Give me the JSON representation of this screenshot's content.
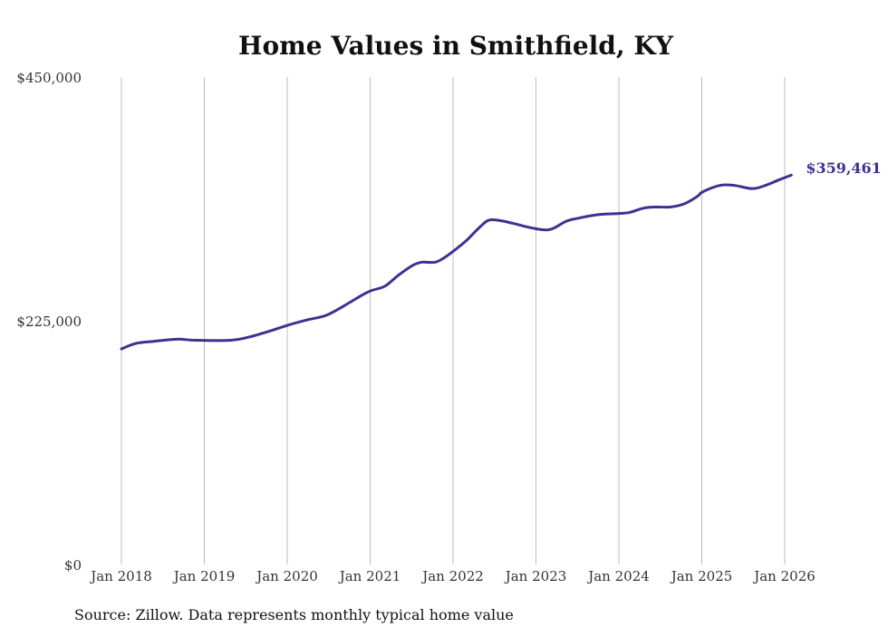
{
  "chart_data": {
    "type": "line",
    "title": "Home Values in Smithfield, KY",
    "xlabel": "",
    "ylabel": "",
    "ylim": [
      0,
      450000
    ],
    "xlim": [
      2018,
      2026.1
    ],
    "grid": "vertical",
    "y_ticks": [
      {
        "value": 0,
        "label": "$0"
      },
      {
        "value": 225000,
        "label": "$225,000"
      },
      {
        "value": 450000,
        "label": "$450,000"
      }
    ],
    "x_ticks": [
      {
        "value": 2018,
        "label": "Jan 2018"
      },
      {
        "value": 2019,
        "label": "Jan 2019"
      },
      {
        "value": 2020,
        "label": "Jan 2020"
      },
      {
        "value": 2021,
        "label": "Jan 2021"
      },
      {
        "value": 2022,
        "label": "Jan 2022"
      },
      {
        "value": 2023,
        "label": "Jan 2023"
      },
      {
        "value": 2024,
        "label": "Jan 2024"
      },
      {
        "value": 2025,
        "label": "Jan 2025"
      },
      {
        "value": 2026,
        "label": "Jan 2026"
      }
    ],
    "series": [
      {
        "name": "Typical home value",
        "color": "#3b3391",
        "end_label": "$359,461",
        "points": [
          [
            2018.0,
            199000
          ],
          [
            2018.17,
            204000
          ],
          [
            2018.39,
            206000
          ],
          [
            2018.67,
            208000
          ],
          [
            2018.89,
            207000
          ],
          [
            2019.32,
            207000
          ],
          [
            2019.54,
            210000
          ],
          [
            2019.81,
            216000
          ],
          [
            2020.01,
            221000
          ],
          [
            2020.25,
            226000
          ],
          [
            2020.47,
            230000
          ],
          [
            2020.69,
            239000
          ],
          [
            2020.91,
            249000
          ],
          [
            2021.02,
            253000
          ],
          [
            2021.18,
            257000
          ],
          [
            2021.34,
            267000
          ],
          [
            2021.51,
            276000
          ],
          [
            2021.62,
            279000
          ],
          [
            2021.78,
            279000
          ],
          [
            2021.89,
            283000
          ],
          [
            2022.0,
            289000
          ],
          [
            2022.16,
            299000
          ],
          [
            2022.33,
            312000
          ],
          [
            2022.44,
            318000
          ],
          [
            2022.6,
            317000
          ],
          [
            2022.77,
            314000
          ],
          [
            2022.93,
            311000
          ],
          [
            2023.09,
            309000
          ],
          [
            2023.2,
            310000
          ],
          [
            2023.37,
            317000
          ],
          [
            2023.53,
            320000
          ],
          [
            2023.75,
            323000
          ],
          [
            2024.0,
            324000
          ],
          [
            2024.13,
            325000
          ],
          [
            2024.3,
            329000
          ],
          [
            2024.46,
            330000
          ],
          [
            2024.62,
            330000
          ],
          [
            2024.79,
            333000
          ],
          [
            2024.95,
            340000
          ],
          [
            2025.01,
            344000
          ],
          [
            2025.22,
            350000
          ],
          [
            2025.39,
            350000
          ],
          [
            2025.61,
            347000
          ],
          [
            2025.77,
            350000
          ],
          [
            2025.93,
            355000
          ],
          [
            2026.08,
            359461
          ]
        ]
      }
    ],
    "source": "Source: Zillow. Data represents monthly typical home value"
  }
}
